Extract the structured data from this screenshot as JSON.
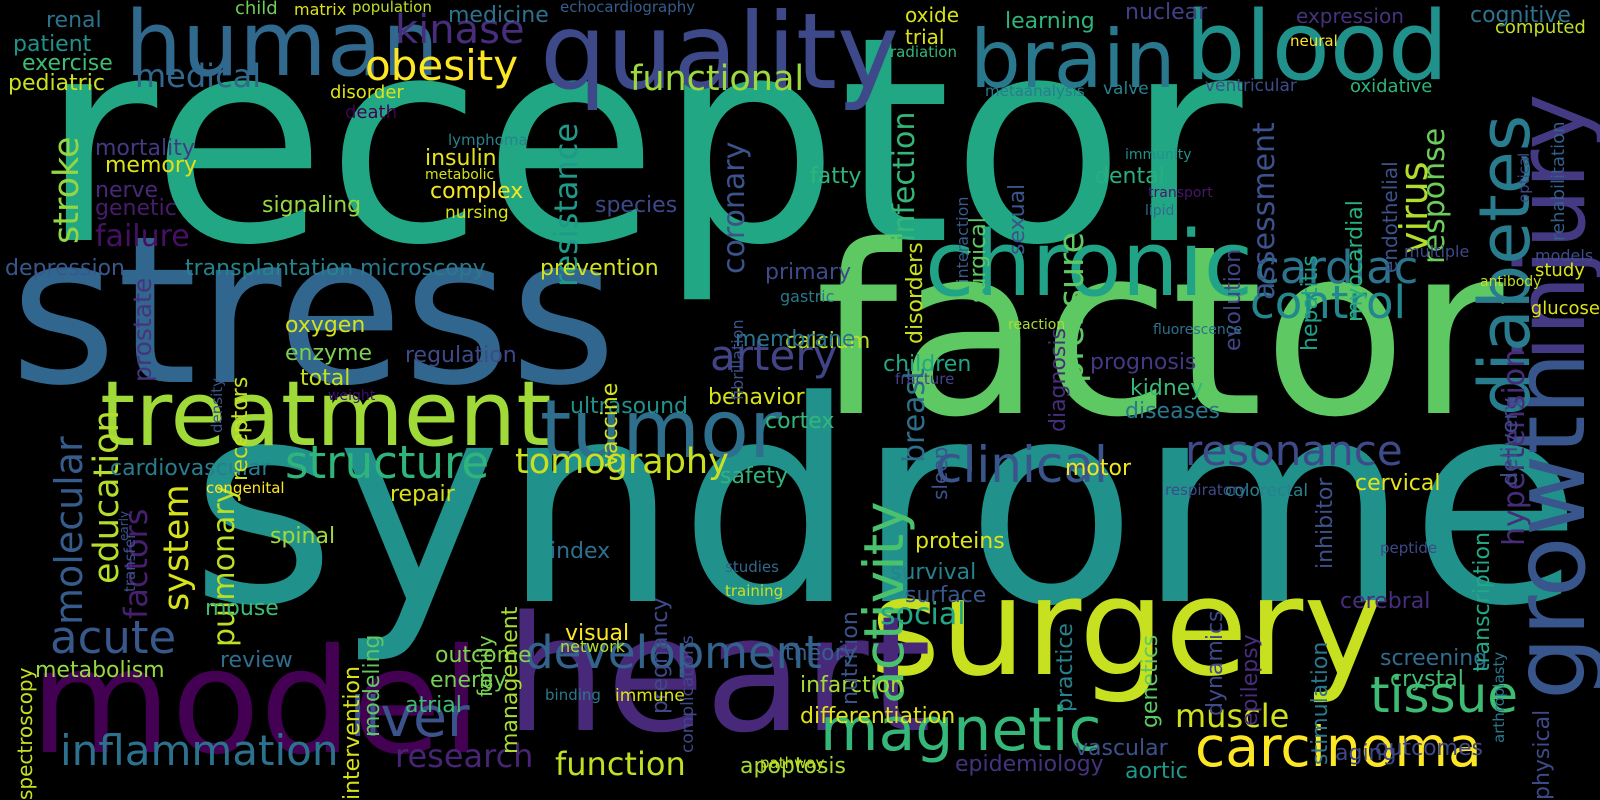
{
  "words": [
    {
      "t": "receptor",
      "c": "#22a784"
    },
    {
      "t": "stress",
      "c": "#31678e"
    },
    {
      "t": "syndrome",
      "c": "#21918c"
    },
    {
      "t": "factor",
      "c": "#5ec962"
    },
    {
      "t": "surgery",
      "c": "#c7e020"
    },
    {
      "t": "heart",
      "c": "#482878"
    },
    {
      "t": "model",
      "c": "#440154"
    },
    {
      "t": "quality",
      "c": "#3e4989"
    },
    {
      "t": "human",
      "c": "#31688e"
    },
    {
      "t": "brain",
      "c": "#2a788e"
    },
    {
      "t": "blood",
      "c": "#21918c"
    },
    {
      "t": "injury",
      "c": "#443a83"
    },
    {
      "t": "growth",
      "c": "#39568c"
    },
    {
      "t": "chronic",
      "c": "#20a386"
    },
    {
      "t": "treatment",
      "c": "#a0da39"
    },
    {
      "t": "tumor",
      "c": "#2e6f8e"
    },
    {
      "t": "diabetes",
      "c": "#287c8e"
    },
    {
      "t": "carcinoma",
      "c": "#fde725"
    },
    {
      "t": "magnetic",
      "c": "#35b779"
    },
    {
      "t": "development",
      "c": "#33638d"
    },
    {
      "t": "inflammation",
      "c": "#2c728e"
    },
    {
      "t": "liver",
      "c": "#3b528b"
    },
    {
      "t": "tissue",
      "c": "#3fbc73"
    },
    {
      "t": "clinical",
      "c": "#39558c"
    },
    {
      "t": "resonance",
      "c": "#3e4a89"
    },
    {
      "t": "activity",
      "c": "#4ac16d"
    },
    {
      "t": "cardiac",
      "c": "#2c738e"
    },
    {
      "t": "control",
      "c": "#23888e"
    },
    {
      "t": "artery",
      "c": "#414487"
    },
    {
      "t": "structure",
      "c": "#2fb47c"
    },
    {
      "t": "tomography",
      "c": "#c8e020"
    },
    {
      "t": "education",
      "c": "#b5de2b"
    },
    {
      "t": "molecular",
      "c": "#365c8d"
    },
    {
      "t": "acute",
      "c": "#38588c"
    },
    {
      "t": "obesity",
      "c": "#fde725"
    },
    {
      "t": "kinase",
      "c": "#472d7b"
    },
    {
      "t": "stroke",
      "c": "#90d743"
    },
    {
      "t": "system",
      "c": "#d8e219"
    },
    {
      "t": "pressure",
      "c": "#5ec962"
    },
    {
      "t": "virus",
      "c": "#b2dd2d"
    },
    {
      "t": "functional",
      "c": "#9bd93c"
    },
    {
      "t": "resistance",
      "c": "#1f9a8a"
    },
    {
      "t": "hypertension",
      "c": "#472c7a"
    },
    {
      "t": "assessment",
      "c": "#3b528b"
    },
    {
      "t": "response",
      "c": "#6ccd5a"
    },
    {
      "t": "medical",
      "c": "#31688e"
    },
    {
      "t": "muscle",
      "c": "#d0e11c"
    },
    {
      "t": "function",
      "c": "#c2df23"
    },
    {
      "t": "research",
      "c": "#482475"
    },
    {
      "t": "factors",
      "c": "#481f70"
    },
    {
      "t": "pulmonary",
      "c": "#bddf26"
    },
    {
      "t": "coronary",
      "c": "#3b528b"
    },
    {
      "t": "infection",
      "c": "#35b779"
    },
    {
      "t": "breast",
      "c": "#2d708e"
    },
    {
      "t": "social",
      "c": "#22a884"
    },
    {
      "t": "failure",
      "c": "#471063"
    },
    {
      "t": "memory",
      "c": "#dde318"
    },
    {
      "t": "signaling",
      "c": "#95d840"
    },
    {
      "t": "transplantation",
      "c": "#25838e"
    },
    {
      "t": "microscopy",
      "c": "#2a788e"
    },
    {
      "t": "prevention",
      "c": "#d2e21b"
    },
    {
      "t": "depression",
      "c": "#38588c"
    },
    {
      "t": "oxygen",
      "c": "#d5e21a"
    },
    {
      "t": "enzyme",
      "c": "#7ad151"
    },
    {
      "t": "total",
      "c": "#c5e021"
    },
    {
      "t": "regulation",
      "c": "#3e4a89"
    },
    {
      "t": "cardiovascular",
      "c": "#287d8e"
    },
    {
      "t": "repair",
      "c": "#d8e219"
    },
    {
      "t": "spinal",
      "c": "#a2da37"
    },
    {
      "t": "index",
      "c": "#2d708e"
    },
    {
      "t": "review",
      "c": "#2e6e8e"
    },
    {
      "t": "metabolism",
      "c": "#95d840"
    },
    {
      "t": "outcome",
      "c": "#7fd34e"
    },
    {
      "t": "energy",
      "c": "#73d056"
    },
    {
      "t": "atrial",
      "c": "#3fbc73"
    },
    {
      "t": "ultrasound",
      "c": "#21918c"
    },
    {
      "t": "behavior",
      "c": "#d8e219"
    },
    {
      "t": "cortex",
      "c": "#32b67a"
    },
    {
      "t": "children",
      "c": "#22a785"
    },
    {
      "t": "calcium",
      "c": "#bade28"
    },
    {
      "t": "membrane",
      "c": "#2b748e"
    },
    {
      "t": "primary",
      "c": "#3e4a89"
    },
    {
      "t": "prognosis",
      "c": "#443983"
    },
    {
      "t": "kidney",
      "c": "#37b878"
    },
    {
      "t": "diseases",
      "c": "#2a788e"
    },
    {
      "t": "motor",
      "c": "#f1e51d"
    },
    {
      "t": "cervical",
      "c": "#e5e419"
    },
    {
      "t": "proteins",
      "c": "#dde318"
    },
    {
      "t": "survival",
      "c": "#26828e"
    },
    {
      "t": "surface",
      "c": "#38588c"
    },
    {
      "t": "screening",
      "c": "#2f6c8e"
    },
    {
      "t": "crystal",
      "c": "#44bf70"
    },
    {
      "t": "outcomes",
      "c": "#3e4989"
    },
    {
      "t": "aging",
      "c": "#3e4989"
    },
    {
      "t": "vascular",
      "c": "#3b528b"
    },
    {
      "t": "aortic",
      "c": "#1f988b"
    },
    {
      "t": "epidemiology",
      "c": "#46337e"
    },
    {
      "t": "apoptosis",
      "c": "#a8db34"
    },
    {
      "t": "differentiation",
      "c": "#e2e418"
    },
    {
      "t": "infarction",
      "c": "#a5db36"
    },
    {
      "t": "theory",
      "c": "#355f8d"
    },
    {
      "t": "complex",
      "c": "#f6e620"
    },
    {
      "t": "insulin",
      "c": "#e7e419"
    },
    {
      "t": "nursing",
      "c": "#d2e21b"
    },
    {
      "t": "fatty",
      "c": "#2fb47c"
    },
    {
      "t": "dental",
      "c": "#29af7f"
    },
    {
      "t": "species",
      "c": "#3e4989"
    },
    {
      "t": "mortality",
      "c": "#443983"
    },
    {
      "t": "nerve",
      "c": "#482979"
    },
    {
      "t": "genetic",
      "c": "#481b6d"
    },
    {
      "t": "disorder",
      "c": "#dde318"
    },
    {
      "t": "death",
      "c": "#440154"
    },
    {
      "t": "renal",
      "c": "#2c728e"
    },
    {
      "t": "patient",
      "c": "#21918c"
    },
    {
      "t": "exercise",
      "c": "#3fbc73"
    },
    {
      "t": "pediatric",
      "c": "#cae11f"
    },
    {
      "t": "child",
      "c": "#6ece58"
    },
    {
      "t": "matrix",
      "c": "#dde318"
    },
    {
      "t": "population",
      "c": "#c0df25"
    },
    {
      "t": "medicine",
      "c": "#2c728e"
    },
    {
      "t": "echocardiography",
      "c": "#365d8d"
    },
    {
      "t": "oxide",
      "c": "#d8e219"
    },
    {
      "t": "trial",
      "c": "#dde318"
    },
    {
      "t": "radiation",
      "c": "#35b779"
    },
    {
      "t": "learning",
      "c": "#2fb47c"
    },
    {
      "t": "nuclear",
      "c": "#424086"
    },
    {
      "t": "neural",
      "c": "#fde725"
    },
    {
      "t": "metaanalysis",
      "c": "#287d8e"
    },
    {
      "t": "valve",
      "c": "#26828e"
    },
    {
      "t": "ventricular",
      "c": "#3d4d8a"
    },
    {
      "t": "oxidative",
      "c": "#2fb47c"
    },
    {
      "t": "expression",
      "c": "#46327e"
    },
    {
      "t": "cognitive",
      "c": "#2c738e"
    },
    {
      "t": "computed",
      "c": "#c0df25"
    },
    {
      "t": "rehabilitation",
      "c": "#355e8d"
    },
    {
      "t": "optical",
      "c": "#3e4989"
    },
    {
      "t": "models",
      "c": "#3e4c8a"
    },
    {
      "t": "study",
      "c": "#d8e219"
    },
    {
      "t": "glucose",
      "c": "#dde318"
    },
    {
      "t": "antibody",
      "c": "#c2df23"
    },
    {
      "t": "multiple",
      "c": "#3e4989"
    },
    {
      "t": "endothelial",
      "c": "#3b528b"
    },
    {
      "t": "myocardial",
      "c": "#2ab07f"
    },
    {
      "t": "hepatitis",
      "c": "#1f9e89"
    },
    {
      "t": "evolution",
      "c": "#414487"
    },
    {
      "t": "immunity",
      "c": "#21918c"
    },
    {
      "t": "transport",
      "c": "#481769"
    },
    {
      "t": "lipid",
      "c": "#2f6c8e"
    },
    {
      "t": "fluorescence",
      "c": "#2c728e"
    },
    {
      "t": "reaction",
      "c": "#a8db34"
    },
    {
      "t": "sexual",
      "c": "#3a548c"
    },
    {
      "t": "surgical",
      "c": "#5ec962"
    },
    {
      "t": "interaction",
      "c": "#365c8d"
    },
    {
      "t": "disorders",
      "c": "#c8e020"
    },
    {
      "t": "diagnosis",
      "c": "#472d7b"
    },
    {
      "t": "fracture",
      "c": "#414487"
    },
    {
      "t": "sleep",
      "c": "#3b528b"
    },
    {
      "t": "gastric",
      "c": "#2a788e"
    },
    {
      "t": "fibrillation",
      "c": "#3b528b"
    },
    {
      "t": "vaccine",
      "c": "#d2e21b"
    },
    {
      "t": "lymphoma",
      "c": "#26828e"
    },
    {
      "t": "metabolic",
      "c": "#d0e11c"
    },
    {
      "t": "receptors",
      "c": "#c7e020"
    },
    {
      "t": "prostate",
      "c": "#46337e"
    },
    {
      "t": "density",
      "c": "#3b528b"
    },
    {
      "t": "weight",
      "c": "#3b0f70"
    },
    {
      "t": "congenital",
      "c": "#fde725"
    },
    {
      "t": "safety",
      "c": "#2fb47c"
    },
    {
      "t": "transfer",
      "c": "#3b528b"
    },
    {
      "t": "early",
      "c": "#3b528b"
    },
    {
      "t": "spectroscopy",
      "c": "#c5e021"
    },
    {
      "t": "mouse",
      "c": "#3fbc73"
    },
    {
      "t": "intervention",
      "c": "#d8e219"
    },
    {
      "t": "modeling",
      "c": "#5ec962"
    },
    {
      "t": "family",
      "c": "#7ad151"
    },
    {
      "t": "management",
      "c": "#a8db34"
    },
    {
      "t": "visual",
      "c": "#fde725"
    },
    {
      "t": "network",
      "c": "#b5de2b"
    },
    {
      "t": "pregnancy",
      "c": "#3e4989"
    },
    {
      "t": "complications",
      "c": "#3e4989"
    },
    {
      "t": "binding",
      "c": "#2a788e"
    },
    {
      "t": "immune",
      "c": "#dde318"
    },
    {
      "t": "studies",
      "c": "#31688e"
    },
    {
      "t": "training",
      "c": "#c7e020"
    },
    {
      "t": "nutrition",
      "c": "#3b528b"
    },
    {
      "t": "pathway",
      "c": "#c0df25"
    },
    {
      "t": "practice",
      "c": "#26828e"
    },
    {
      "t": "genetics",
      "c": "#5ec962"
    },
    {
      "t": "dynamics",
      "c": "#3e4a89"
    },
    {
      "t": "epilepsy",
      "c": "#472d7b"
    },
    {
      "t": "stimulation",
      "c": "#2a788e"
    },
    {
      "t": "inhibitor",
      "c": "#3b528b"
    },
    {
      "t": "respiratory",
      "c": "#3e4989"
    },
    {
      "t": "colorectal",
      "c": "#26828e"
    },
    {
      "t": "cerebral",
      "c": "#472d7b"
    },
    {
      "t": "transcription",
      "c": "#22a884"
    },
    {
      "t": "delivery",
      "c": "#3e4989"
    },
    {
      "t": "peptide",
      "c": "#3e4989"
    },
    {
      "t": "arthroplasty",
      "c": "#2a788e"
    },
    {
      "t": "physical",
      "c": "#3e4989"
    }
  ]
}
